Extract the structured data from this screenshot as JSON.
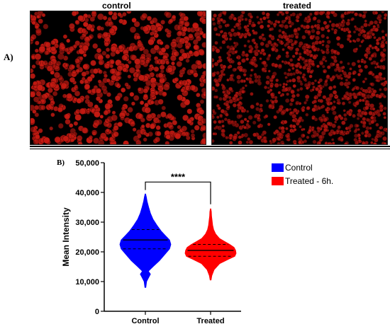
{
  "panels": {
    "a_label": "A)",
    "b_label": "B)",
    "images": [
      {
        "title": "control",
        "stain_color": "#c41a12",
        "cell_density": "dense"
      },
      {
        "title": "treated",
        "stain_color": "#a9140f",
        "cell_density": "dense-dim"
      }
    ]
  },
  "chart_data": {
    "type": "violin",
    "categories": [
      "Control",
      "Treated"
    ],
    "ylabel": "Mean Intensity",
    "xlabel": "",
    "ylim": [
      0,
      50000
    ],
    "yticks": [
      0,
      10000,
      20000,
      30000,
      40000,
      50000
    ],
    "ytick_labels": [
      "0",
      "10,000",
      "20,000",
      "30,000",
      "40,000",
      "50,000"
    ],
    "series": [
      {
        "name": "Control",
        "color": "#0000ff",
        "min": 8000,
        "max": 39500,
        "q1": 21000,
        "median": 24000,
        "q3": 27500,
        "density": [
          [
            8000,
            0.02
          ],
          [
            10000,
            0.05
          ],
          [
            11500,
            0.14
          ],
          [
            12500,
            0.2
          ],
          [
            13500,
            0.12
          ],
          [
            15000,
            0.3
          ],
          [
            17000,
            0.55
          ],
          [
            19000,
            0.75
          ],
          [
            21000,
            0.95
          ],
          [
            22500,
            1.0
          ],
          [
            24000,
            0.95
          ],
          [
            25500,
            0.78
          ],
          [
            27000,
            0.62
          ],
          [
            29000,
            0.45
          ],
          [
            31000,
            0.3
          ],
          [
            33000,
            0.2
          ],
          [
            35000,
            0.13
          ],
          [
            37000,
            0.07
          ],
          [
            38500,
            0.04
          ],
          [
            39500,
            0.01
          ]
        ]
      },
      {
        "name": "Treated - 6h.",
        "color": "#ff0000",
        "min": 10500,
        "max": 34500,
        "q1": 18500,
        "median": 20500,
        "q3": 22500,
        "density": [
          [
            10500,
            0.02
          ],
          [
            12000,
            0.05
          ],
          [
            14000,
            0.14
          ],
          [
            16000,
            0.35
          ],
          [
            17500,
            0.7
          ],
          [
            18500,
            0.95
          ],
          [
            19500,
            1.0
          ],
          [
            20500,
            0.98
          ],
          [
            21500,
            0.92
          ],
          [
            22500,
            0.75
          ],
          [
            23500,
            0.55
          ],
          [
            24500,
            0.35
          ],
          [
            26000,
            0.2
          ],
          [
            27500,
            0.12
          ],
          [
            29000,
            0.08
          ],
          [
            30500,
            0.06
          ],
          [
            32000,
            0.04
          ],
          [
            33500,
            0.03
          ],
          [
            34500,
            0.01
          ]
        ]
      }
    ],
    "legend": {
      "placement": "top-right",
      "entries": [
        "Control",
        "Treated - 6h."
      ]
    },
    "annotation": {
      "text": "****",
      "between": [
        "Control",
        "Treated"
      ]
    }
  }
}
